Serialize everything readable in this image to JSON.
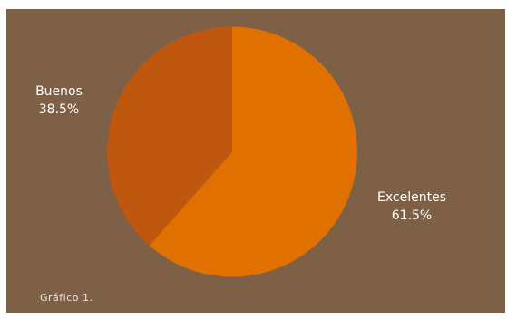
{
  "chart_data": {
    "type": "pie",
    "title": "",
    "caption": "Gráfico 1.",
    "slices": [
      {
        "name": "Excelentes",
        "value": 61.5,
        "label": "61.5%",
        "color": "#e07000"
      },
      {
        "name": "Buenos",
        "value": 38.5,
        "label": "38.5%",
        "color": "#c0570f"
      }
    ],
    "background_color": "#7d6045"
  }
}
